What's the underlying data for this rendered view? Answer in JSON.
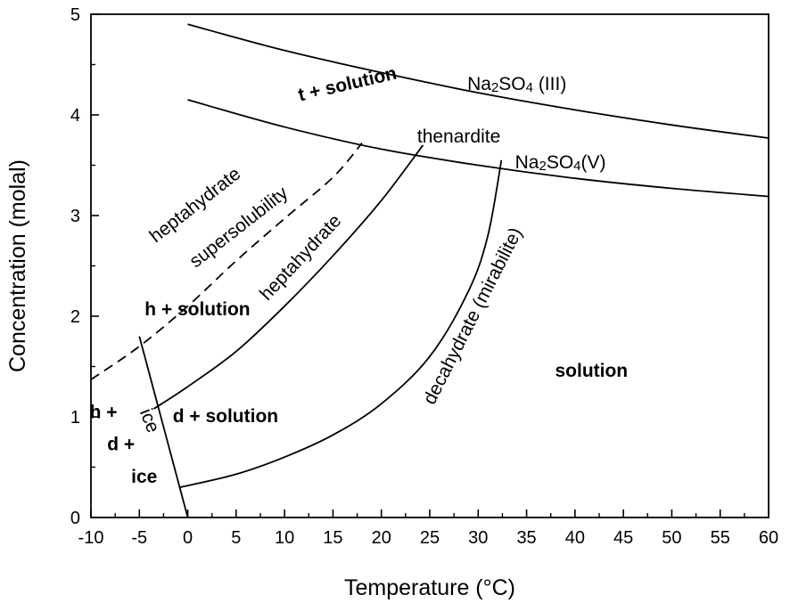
{
  "chart_data": {
    "type": "line",
    "title": "",
    "xlabel": "Temperature (°C)",
    "ylabel": "Concentration (molal)",
    "xlim": [
      -10,
      60
    ],
    "ylim": [
      0,
      5
    ],
    "xticks": [
      "-10",
      "-5",
      "0",
      "5",
      "10",
      "15",
      "20",
      "25",
      "30",
      "35",
      "40",
      "45",
      "50",
      "55",
      "60"
    ],
    "yticks": [
      "0",
      "1",
      "2",
      "3",
      "4",
      "5"
    ],
    "grid": false,
    "legend": "none",
    "series": [
      {
        "key": "na2so4_iii",
        "dashed": false,
        "points": [
          [
            0,
            4.9
          ],
          [
            10,
            4.64
          ],
          [
            20,
            4.42
          ],
          [
            30,
            4.22
          ],
          [
            40,
            4.05
          ],
          [
            50,
            3.9
          ],
          [
            60,
            3.77
          ]
        ]
      },
      {
        "key": "na2so4_v",
        "dashed": false,
        "points": [
          [
            0,
            4.15
          ],
          [
            10,
            3.88
          ],
          [
            20,
            3.66
          ],
          [
            30,
            3.5
          ],
          [
            40,
            3.37
          ],
          [
            50,
            3.27
          ],
          [
            60,
            3.19
          ]
        ]
      },
      {
        "key": "heptahydrate_supersolubility",
        "dashed": true,
        "points": [
          [
            -10,
            1.37
          ],
          [
            -5,
            1.7
          ],
          [
            0,
            2.1
          ],
          [
            5,
            2.55
          ],
          [
            10,
            2.97
          ],
          [
            15,
            3.38
          ],
          [
            18,
            3.72
          ]
        ]
      },
      {
        "key": "heptahydrate",
        "dashed": false,
        "points": [
          [
            -3.5,
            1.08
          ],
          [
            0,
            1.3
          ],
          [
            5,
            1.65
          ],
          [
            10,
            2.1
          ],
          [
            15,
            2.6
          ],
          [
            20,
            3.15
          ],
          [
            24.3,
            3.7
          ]
        ]
      },
      {
        "key": "decahydrate_mirabilite",
        "dashed": false,
        "points": [
          [
            -0.8,
            0.3
          ],
          [
            5,
            0.43
          ],
          [
            10,
            0.6
          ],
          [
            15,
            0.82
          ],
          [
            20,
            1.13
          ],
          [
            25,
            1.6
          ],
          [
            29,
            2.25
          ],
          [
            31,
            2.8
          ],
          [
            32.4,
            3.55
          ]
        ]
      },
      {
        "key": "ice",
        "dashed": false,
        "points": [
          [
            -5,
            1.8
          ],
          [
            -2.5,
            0.9
          ],
          [
            0,
            0
          ]
        ]
      }
    ],
    "annotations": {
      "t_solution": {
        "parts": [
          "t + solution"
        ],
        "x": 16.5,
        "y": 4.3,
        "angle": -13,
        "bold": true
      },
      "na2so4_iii": {
        "parts": [
          "Na",
          "2",
          "SO",
          "4",
          " (III)"
        ],
        "x": 34,
        "y": 4.3,
        "angle": 0,
        "bold": false
      },
      "thenardite": {
        "parts": [
          "thenardite"
        ],
        "x": 28,
        "y": 3.78,
        "angle": 0,
        "bold": false
      },
      "na2so4_v": {
        "parts": [
          "Na",
          "2",
          "SO",
          "4",
          "(V)"
        ],
        "x": 38.5,
        "y": 3.52,
        "angle": 0,
        "bold": false
      },
      "heptahydrate_upper": {
        "parts": [
          "heptahydrate"
        ],
        "x": 0.8,
        "y": 3.1,
        "angle": -38,
        "bold": false
      },
      "supersolubility": {
        "parts": [
          "supersolubility"
        ],
        "x": 5.3,
        "y": 2.88,
        "angle": -38,
        "bold": false
      },
      "heptahydrate_curve": {
        "parts": [
          "heptahydrate"
        ],
        "x": 11.7,
        "y": 2.58,
        "angle": -47,
        "bold": false
      },
      "h_solution": {
        "parts": [
          "h + solution"
        ],
        "x": 1,
        "y": 2.06,
        "angle": 0,
        "bold": true
      },
      "decahydrate": {
        "parts": [
          "decahydrate (mirabilite)"
        ],
        "x": 29.5,
        "y": 2.0,
        "angle": -63,
        "bold": false
      },
      "solution": {
        "parts": [
          "solution"
        ],
        "x": 41.7,
        "y": 1.45,
        "angle": 0,
        "bold": true
      },
      "h_plus": {
        "parts": [
          "h +"
        ],
        "x": -8.7,
        "y": 1.04,
        "angle": 0,
        "bold": true
      },
      "ice_rot": {
        "parts": [
          "ice"
        ],
        "x": -4,
        "y": 0.96,
        "angle": 68,
        "bold": false
      },
      "d_solution": {
        "parts": [
          "d + solution"
        ],
        "x": 3.9,
        "y": 1.0,
        "angle": 0,
        "bold": true
      },
      "d_plus": {
        "parts": [
          "d +"
        ],
        "x": -6.9,
        "y": 0.72,
        "angle": 0,
        "bold": true
      },
      "ice_label": {
        "parts": [
          "ice"
        ],
        "x": -4.5,
        "y": 0.4,
        "angle": 0,
        "bold": true
      }
    }
  }
}
